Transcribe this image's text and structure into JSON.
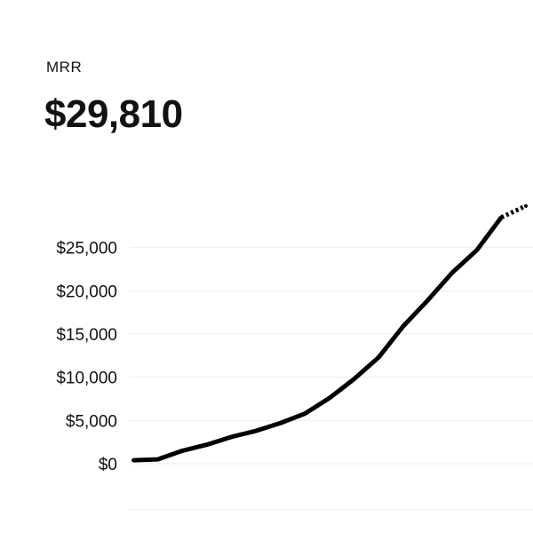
{
  "metric": {
    "label": "MRR",
    "value": "$29,810"
  },
  "colors": {
    "line": "#000000",
    "grid": "#ececec",
    "text": "#111111"
  },
  "chart_data": {
    "type": "line",
    "title": "",
    "xlabel": "",
    "ylabel": "",
    "ylim": [
      0,
      30000
    ],
    "grid": true,
    "yticks": [
      0,
      5000,
      10000,
      15000,
      20000,
      25000
    ],
    "ytick_labels": [
      "$0",
      "$5,000",
      "$10,000",
      "$15,000",
      "$20,000",
      "$25,000"
    ],
    "x": [
      0,
      1,
      2,
      3,
      4,
      5,
      6,
      7,
      8,
      9,
      10,
      11,
      12,
      13,
      14,
      15,
      16
    ],
    "series": [
      {
        "values": [
          400,
          500,
          1500,
          2200,
          3100,
          3800,
          4700,
          5800,
          7600,
          9800,
          12300,
          15900,
          18900,
          22100,
          24700,
          28500,
          29810
        ],
        "projected_from_index": 15
      }
    ]
  }
}
